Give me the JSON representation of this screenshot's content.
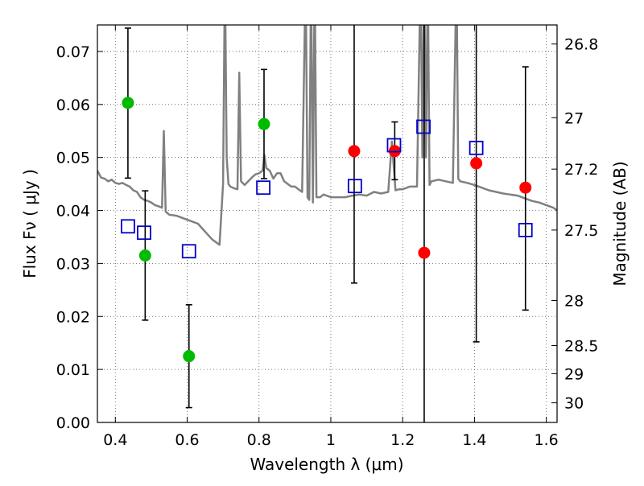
{
  "chart_data": {
    "type": "scatter",
    "title": "",
    "xlabel": "Wavelength  λ (μm)",
    "ylabel": "Flux  Fν  ( μJy )",
    "ylabel_right": "Magnitude (AB)",
    "xlim": [
      0.35,
      1.63
    ],
    "ylim": [
      0.0,
      0.075
    ],
    "grid": true,
    "x_ticks": [
      {
        "value": 0.4,
        "label": "0.4"
      },
      {
        "value": 0.6,
        "label": "0.6"
      },
      {
        "value": 0.8,
        "label": "0.8"
      },
      {
        "value": 1.0,
        "label": "1"
      },
      {
        "value": 1.2,
        "label": "1.2"
      },
      {
        "value": 1.4,
        "label": "1.4"
      },
      {
        "value": 1.6,
        "label": "1.6"
      }
    ],
    "y_ticks": [
      {
        "value": 0.0,
        "label": "0.00"
      },
      {
        "value": 0.01,
        "label": "0.01"
      },
      {
        "value": 0.02,
        "label": "0.02"
      },
      {
        "value": 0.03,
        "label": "0.03"
      },
      {
        "value": 0.04,
        "label": "0.04"
      },
      {
        "value": 0.05,
        "label": "0.05"
      },
      {
        "value": 0.06,
        "label": "0.06"
      },
      {
        "value": 0.07,
        "label": "0.07"
      }
    ],
    "right_ticks": [
      {
        "flux": 0.0714,
        "label": "26.8"
      },
      {
        "flux": 0.0575,
        "label": "27"
      },
      {
        "flux": 0.0478,
        "label": "27.2"
      },
      {
        "flux": 0.0363,
        "label": "27.5"
      },
      {
        "flux": 0.023,
        "label": "28"
      },
      {
        "flux": 0.0145,
        "label": "28.5"
      },
      {
        "flux": 0.0092,
        "label": "29"
      },
      {
        "flux": 0.0037,
        "label": "30"
      }
    ],
    "series": [
      {
        "name": "model spectrum",
        "kind": "line",
        "color": "#808080",
        "x": [
          0.35,
          0.36,
          0.37,
          0.38,
          0.39,
          0.4,
          0.41,
          0.42,
          0.43,
          0.44,
          0.45,
          0.46,
          0.47,
          0.48,
          0.49,
          0.5,
          0.51,
          0.52,
          0.53,
          0.535,
          0.54,
          0.55,
          0.57,
          0.59,
          0.61,
          0.63,
          0.65,
          0.67,
          0.69,
          0.7,
          0.705,
          0.71,
          0.715,
          0.72,
          0.73,
          0.74,
          0.745,
          0.75,
          0.76,
          0.77,
          0.78,
          0.79,
          0.8,
          0.81,
          0.815,
          0.82,
          0.83,
          0.84,
          0.85,
          0.86,
          0.87,
          0.88,
          0.89,
          0.9,
          0.91,
          0.92,
          0.93,
          0.935,
          0.94,
          0.945,
          0.95,
          0.955,
          0.96,
          0.97,
          0.98,
          1.0,
          1.02,
          1.04,
          1.06,
          1.08,
          1.1,
          1.12,
          1.14,
          1.16,
          1.17,
          1.18,
          1.19,
          1.2,
          1.22,
          1.24,
          1.25,
          1.255,
          1.26,
          1.265,
          1.27,
          1.275,
          1.28,
          1.3,
          1.32,
          1.34,
          1.35,
          1.355,
          1.36,
          1.38,
          1.4,
          1.42,
          1.44,
          1.46,
          1.48,
          1.5,
          1.52,
          1.54,
          1.56,
          1.58,
          1.6,
          1.62,
          1.63
        ],
        "y": [
          0.0475,
          0.0462,
          0.046,
          0.0455,
          0.0458,
          0.0452,
          0.045,
          0.0452,
          0.0448,
          0.0445,
          0.0438,
          0.0435,
          0.0425,
          0.042,
          0.0418,
          0.0415,
          0.041,
          0.0408,
          0.0405,
          0.055,
          0.0398,
          0.0392,
          0.039,
          0.0385,
          0.038,
          0.0375,
          0.036,
          0.0345,
          0.0335,
          0.045,
          0.085,
          0.05,
          0.045,
          0.0445,
          0.0442,
          0.044,
          0.066,
          0.0455,
          0.0448,
          0.0455,
          0.0462,
          0.0468,
          0.047,
          0.0475,
          0.0505,
          0.048,
          0.0475,
          0.046,
          0.047,
          0.047,
          0.0455,
          0.045,
          0.0445,
          0.0445,
          0.044,
          0.0435,
          0.085,
          0.0425,
          0.042,
          0.085,
          0.0415,
          0.085,
          0.0425,
          0.0425,
          0.043,
          0.0425,
          0.0425,
          0.0425,
          0.0428,
          0.043,
          0.0428,
          0.0435,
          0.0432,
          0.0435,
          0.053,
          0.0438,
          0.044,
          0.044,
          0.0445,
          0.0445,
          0.085,
          0.05,
          0.085,
          0.05,
          0.085,
          0.0448,
          0.0455,
          0.0458,
          0.0455,
          0.0452,
          0.085,
          0.046,
          0.0455,
          0.0452,
          0.0448,
          0.0443,
          0.0438,
          0.0435,
          0.0432,
          0.043,
          0.0428,
          0.0423,
          0.0418,
          0.0415,
          0.041,
          0.0405,
          0.04
        ]
      },
      {
        "name": "green points",
        "kind": "points",
        "color": "#00bb00",
        "points": [
          {
            "x": 0.435,
            "y": 0.0603,
            "err_low": 0.0461,
            "err_high": 0.0744
          },
          {
            "x": 0.483,
            "y": 0.0315,
            "err_low": 0.0193,
            "err_high": 0.0437
          },
          {
            "x": 0.605,
            "y": 0.0125,
            "err_low": 0.0028,
            "err_high": 0.0222
          },
          {
            "x": 0.814,
            "y": 0.0563,
            "err_low": 0.046,
            "err_high": 0.0666
          }
        ]
      },
      {
        "name": "red points",
        "kind": "points",
        "color": "#ff0000",
        "points": [
          {
            "x": 1.065,
            "y": 0.0512,
            "err_low": 0.0263,
            "err_high": 0.0761
          },
          {
            "x": 1.178,
            "y": 0.0512,
            "err_low": 0.0458,
            "err_high": 0.0567
          },
          {
            "x": 1.26,
            "y": 0.032,
            "err_low": 0.0,
            "err_high": 0.075
          },
          {
            "x": 1.405,
            "y": 0.0489,
            "err_low": 0.0152,
            "err_high": 0.075
          },
          {
            "x": 1.542,
            "y": 0.0443,
            "err_low": 0.0212,
            "err_high": 0.0671
          }
        ]
      },
      {
        "name": "model photometry",
        "kind": "squares",
        "color": "#0000cc",
        "points": [
          {
            "x": 0.435,
            "y": 0.037
          },
          {
            "x": 0.48,
            "y": 0.0358
          },
          {
            "x": 0.605,
            "y": 0.0323
          },
          {
            "x": 0.812,
            "y": 0.0443
          },
          {
            "x": 1.067,
            "y": 0.0446
          },
          {
            "x": 1.176,
            "y": 0.0523
          },
          {
            "x": 1.258,
            "y": 0.0558
          },
          {
            "x": 1.405,
            "y": 0.0518
          },
          {
            "x": 1.542,
            "y": 0.0363
          }
        ]
      }
    ]
  }
}
